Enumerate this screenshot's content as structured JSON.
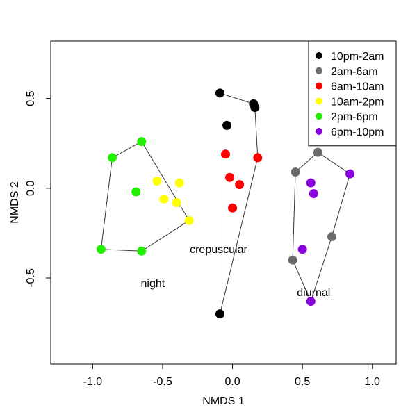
{
  "chart_data": {
    "type": "scatter",
    "xlabel": "NMDS 1",
    "ylabel": "NMDS 2",
    "xlim": [
      -1.3,
      1.17
    ],
    "ylim": [
      -0.98,
      0.82
    ],
    "x_ticks": [
      -1.0,
      -0.5,
      0.0,
      0.5,
      1.0
    ],
    "x_tick_labels": [
      "-1.0",
      "-0.5",
      "0.0",
      "0.5",
      "1.0"
    ],
    "y_ticks": [
      -0.5,
      0.0,
      0.5
    ],
    "y_tick_labels": [
      "-0.5",
      "0.0",
      "0.5"
    ],
    "grid": false,
    "legend_position": "top-right",
    "series": [
      {
        "name": "10pm-2am",
        "color": "#000000",
        "points": [
          [
            -0.09,
            0.53
          ],
          [
            0.15,
            0.47
          ],
          [
            0.16,
            0.45
          ],
          [
            -0.04,
            0.35
          ],
          [
            -0.09,
            -0.7
          ]
        ]
      },
      {
        "name": "2am-6am",
        "color": "#6b6b6b",
        "points": [
          [
            0.61,
            0.2
          ],
          [
            0.45,
            0.09
          ],
          [
            0.71,
            -0.27
          ],
          [
            0.43,
            -0.4
          ]
        ]
      },
      {
        "name": "6am-10am",
        "color": "#ff0000",
        "points": [
          [
            -0.05,
            0.19
          ],
          [
            0.18,
            0.17
          ],
          [
            -0.02,
            0.06
          ],
          [
            0.05,
            0.02
          ],
          [
            0.0,
            -0.11
          ]
        ]
      },
      {
        "name": "10am-2pm",
        "color": "#ffff00",
        "points": [
          [
            -0.54,
            0.04
          ],
          [
            -0.38,
            0.03
          ],
          [
            -0.49,
            -0.06
          ],
          [
            -0.4,
            -0.08
          ],
          [
            -0.31,
            -0.18
          ]
        ]
      },
      {
        "name": "2pm-6pm",
        "color": "#22ee00",
        "points": [
          [
            -0.65,
            0.26
          ],
          [
            -0.86,
            0.17
          ],
          [
            -0.69,
            -0.02
          ],
          [
            -0.94,
            -0.34
          ],
          [
            -0.65,
            -0.35
          ]
        ]
      },
      {
        "name": "6pm-10pm",
        "color": "#8800dd",
        "points": [
          [
            0.84,
            0.08
          ],
          [
            0.56,
            0.03
          ],
          [
            0.58,
            -0.03
          ],
          [
            0.5,
            -0.34
          ],
          [
            0.56,
            -0.63
          ]
        ]
      }
    ],
    "hulls": [
      {
        "name": "night",
        "points": [
          [
            -0.65,
            0.26
          ],
          [
            -0.31,
            -0.18
          ],
          [
            -0.65,
            -0.35
          ],
          [
            -0.94,
            -0.34
          ],
          [
            -0.86,
            0.17
          ]
        ]
      },
      {
        "name": "crepuscular",
        "points": [
          [
            -0.09,
            0.53
          ],
          [
            0.15,
            0.47
          ],
          [
            0.16,
            0.45
          ],
          [
            0.18,
            0.17
          ],
          [
            -0.09,
            -0.7
          ]
        ]
      },
      {
        "name": "diurnal",
        "points": [
          [
            0.61,
            0.2
          ],
          [
            0.84,
            0.08
          ],
          [
            0.71,
            -0.27
          ],
          [
            0.56,
            -0.63
          ],
          [
            0.43,
            -0.4
          ],
          [
            0.45,
            0.09
          ]
        ]
      }
    ],
    "annotations": [
      {
        "text": "night",
        "x": -0.57,
        "y": -0.55
      },
      {
        "text": "crepuscular",
        "x": -0.1,
        "y": -0.36
      },
      {
        "text": "diurnal",
        "x": 0.58,
        "y": -0.6
      }
    ]
  }
}
